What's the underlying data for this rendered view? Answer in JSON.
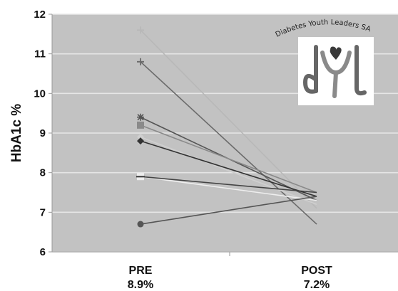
{
  "chart_data": {
    "type": "line",
    "title": "",
    "xlabel": "",
    "ylabel": "HbA1c %",
    "ylim": [
      6,
      12
    ],
    "yticks": [
      6,
      7,
      8,
      9,
      10,
      11,
      12
    ],
    "grid": true,
    "legend": "none",
    "categories": [
      {
        "label": "PRE",
        "sublabel": "8.9%"
      },
      {
        "label": "POST",
        "sublabel": "7.2%"
      }
    ],
    "series": [
      {
        "values": [
          11.6,
          7.1
        ],
        "color": "#b8b8b8",
        "marker": "plus"
      },
      {
        "values": [
          10.8,
          6.7
        ],
        "color": "#6a6a6a",
        "marker": "plus"
      },
      {
        "values": [
          9.4,
          7.3
        ],
        "color": "#555555",
        "marker": "star"
      },
      {
        "values": [
          9.2,
          7.5
        ],
        "color": "#8a8a8a",
        "marker": "square"
      },
      {
        "values": [
          8.9,
          7.2
        ],
        "color": "#cfcfcf",
        "marker": "diamond"
      },
      {
        "values": [
          8.8,
          7.4
        ],
        "color": "#333333",
        "marker": "diamond"
      },
      {
        "values": [
          7.9,
          7.3
        ],
        "color": "#eeeeee",
        "marker": "square"
      },
      {
        "values": [
          7.9,
          7.5
        ],
        "color": "#444444",
        "marker": "dash"
      },
      {
        "values": [
          6.7,
          7.4
        ],
        "color": "#555555",
        "marker": "circle"
      }
    ]
  },
  "logo": {
    "text": "Diabetes Youth Leaders SA",
    "monogram": "dyl"
  },
  "colors": {
    "plot_background": "#c2c2c2",
    "grid": "#e6e6e6"
  }
}
